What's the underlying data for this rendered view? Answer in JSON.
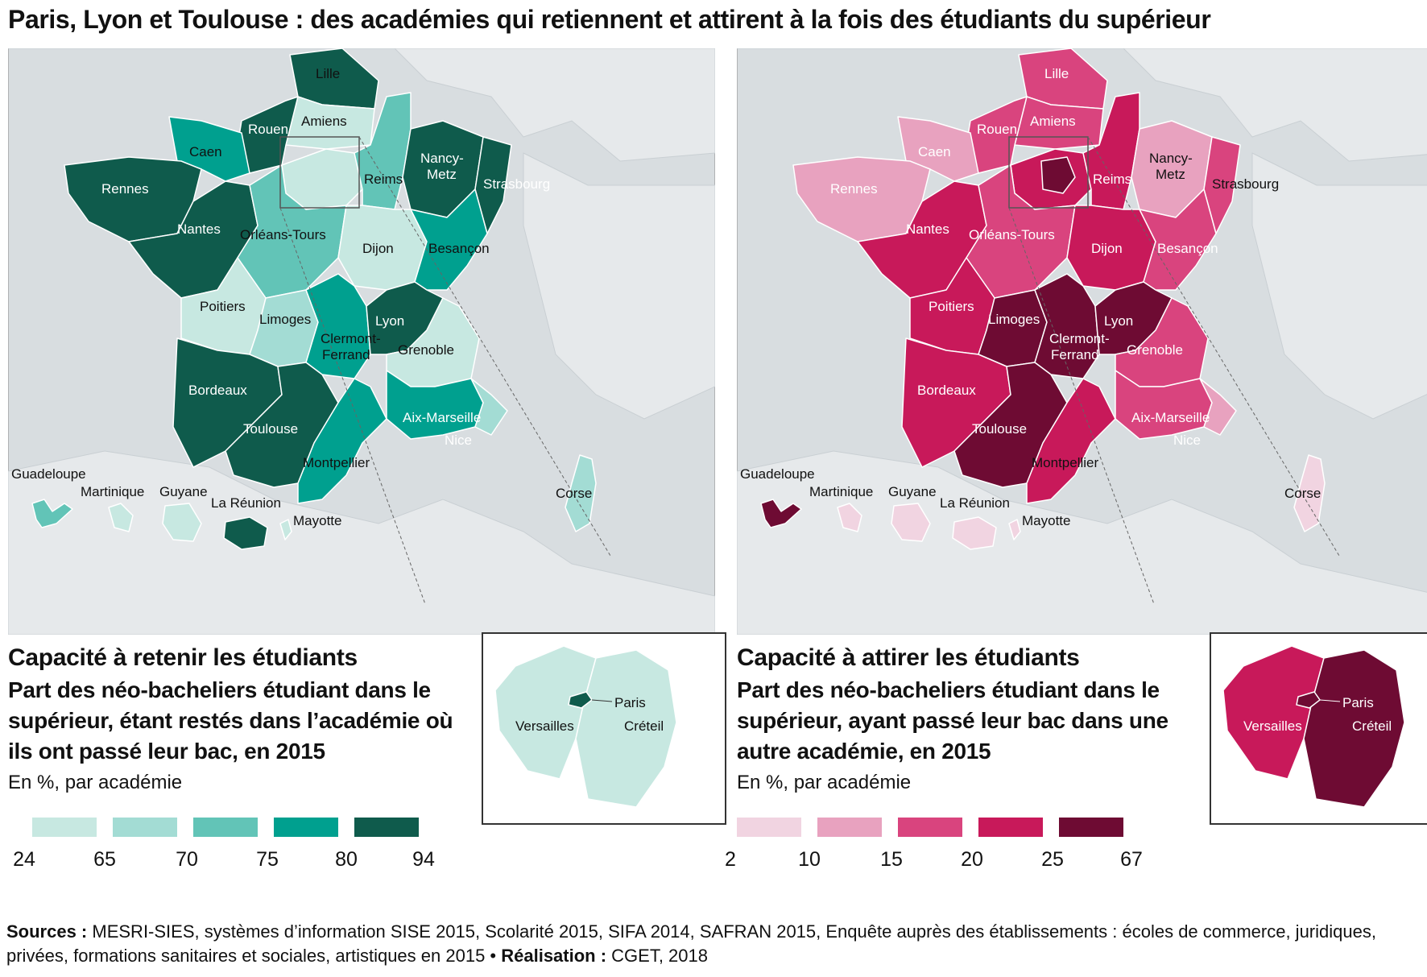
{
  "title": "Paris, Lyon et Toulouse : des académies qui retiennent et attirent à la fois des étudiants du supérieur",
  "colors": {
    "sea": "#d8dde0",
    "neighbours": "#e6e9eb",
    "teal_scale": [
      "#c7e8e1",
      "#a3dcd4",
      "#62c4b7",
      "#00a08f",
      "#0f5b4c"
    ],
    "magenta_scale": [
      "#f1d4e1",
      "#e8a2bf",
      "#d9447e",
      "#c8195a",
      "#6e0b33"
    ]
  },
  "left_map": {
    "heading": "Capacité à retenir les étudiants",
    "subtitle": "Part des néo-bacheliers étudiant dans le supérieur, étant restés dans l’académie où ils ont passé leur bac, en 2015",
    "unit": "En %, par académie",
    "legend_ticks": [
      "24",
      "65",
      "70",
      "75",
      "80",
      "94"
    ],
    "labels": {
      "lille": "Lille",
      "amiens": "Amiens",
      "rouen": "Rouen",
      "caen": "Caen",
      "rennes": "Rennes",
      "nantes": "Nantes",
      "orleans": "Orléans-Tours",
      "reims": "Reims",
      "nancy1": "Nancy-",
      "nancy2": "Metz",
      "strasbourg": "Strasbourg",
      "dijon": "Dijon",
      "besancon": "Besançon",
      "poitiers": "Poitiers",
      "limoges": "Limoges",
      "clermont1": "Clermont-",
      "clermont2": "Ferrand",
      "lyon": "Lyon",
      "grenoble": "Grenoble",
      "bordeaux": "Bordeaux",
      "toulouse": "Toulouse",
      "aix": "Aix-Marseille",
      "nice": "Nice",
      "montpellier": "Montpellier",
      "corse": "Corse",
      "guadeloupe": "Guadeloupe",
      "martinique": "Martinique",
      "guyane": "Guyane",
      "reunion": "La Réunion",
      "mayotte": "Mayotte",
      "paris": "Paris",
      "versailles": "Versailles",
      "creteil": "Créteil"
    }
  },
  "right_map": {
    "heading": "Capacité à attirer les étudiants",
    "subtitle": "Part des néo-bacheliers étudiant dans le supérieur, ayant passé leur bac dans une autre académie, en 2015",
    "unit": "En %, par académie",
    "legend_ticks": [
      "2",
      "10",
      "15",
      "20",
      "25",
      "67"
    ],
    "labels": {
      "lille": "Lille",
      "amiens": "Amiens",
      "rouen": "Rouen",
      "caen": "Caen",
      "rennes": "Rennes",
      "nantes": "Nantes",
      "orleans": "Orléans-Tours",
      "reims": "Reims",
      "nancy1": "Nancy-",
      "nancy2": "Metz",
      "strasbourg": "Strasbourg",
      "dijon": "Dijon",
      "besancon": "Besançon",
      "poitiers": "Poitiers",
      "limoges": "Limoges",
      "clermont1": "Clermont-",
      "clermont2": "Ferrand",
      "lyon": "Lyon",
      "grenoble": "Grenoble",
      "bordeaux": "Bordeaux",
      "toulouse": "Toulouse",
      "aix": "Aix-Marseille",
      "nice": "Nice",
      "montpellier": "Montpellier",
      "corse": "Corse",
      "guadeloupe": "Guadeloupe",
      "martinique": "Martinique",
      "guyane": "Guyane",
      "reunion": "La Réunion",
      "mayotte": "Mayotte",
      "paris": "Paris",
      "versailles": "Versailles",
      "creteil": "Créteil"
    }
  },
  "sources": {
    "label": "Sources :",
    "text": " MESRI-SIES, systèmes d’information SISE 2015, Scolarité 2015, SIFA 2014, SAFRAN 2015, Enquête auprès des établissements : écoles de commerce, juridiques, privées, formations sanitaires et sociales, artistiques en 2015 • ",
    "credit_label": "Réalisation :",
    "credit": " CGET, 2018"
  }
}
